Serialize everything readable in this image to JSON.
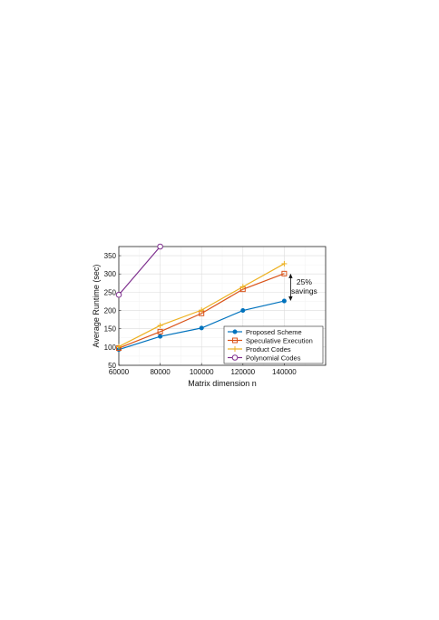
{
  "chart_data": {
    "type": "line",
    "xlabel": "Matrix dimension n",
    "ylabel": "Average Runtime (sec)",
    "xlim": [
      60000,
      160000
    ],
    "ylim": [
      50,
      375
    ],
    "xticks": [
      60000,
      80000,
      100000,
      120000,
      140000
    ],
    "xtick_labels": [
      "60000",
      "80000",
      "100000",
      "120000",
      "140000"
    ],
    "yticks": [
      50,
      100,
      150,
      200,
      250,
      300,
      350
    ],
    "ytick_labels": [
      "50",
      "100",
      "150",
      "200",
      "250",
      "300",
      "350"
    ],
    "grid": true,
    "legend_position": "bottom-right",
    "series": [
      {
        "name": "Proposed Scheme",
        "color": "#0072BD",
        "marker": "filled-circle",
        "x": [
          60000,
          80000,
          100000,
          120000,
          140000
        ],
        "y": [
          93,
          129,
          152,
          200,
          226
        ]
      },
      {
        "name": "Speculative Execution",
        "color": "#D95319",
        "marker": "square",
        "x": [
          60000,
          80000,
          100000,
          120000,
          140000
        ],
        "y": [
          97,
          142,
          192,
          258,
          301
        ]
      },
      {
        "name": "Product Codes",
        "color": "#EDB120",
        "marker": "plus",
        "x": [
          60000,
          80000,
          100000,
          120000,
          140000
        ],
        "y": [
          101,
          159,
          201,
          265,
          328
        ]
      },
      {
        "name": "Polynomial Codes",
        "color": "#7E2F8E",
        "marker": "circle",
        "x": [
          60000,
          80000
        ],
        "y": [
          243,
          375
        ]
      }
    ],
    "annotation": {
      "lines": [
        "25%",
        "savings"
      ],
      "at_x": 140000,
      "from_y": 301,
      "to_y": 226
    }
  }
}
